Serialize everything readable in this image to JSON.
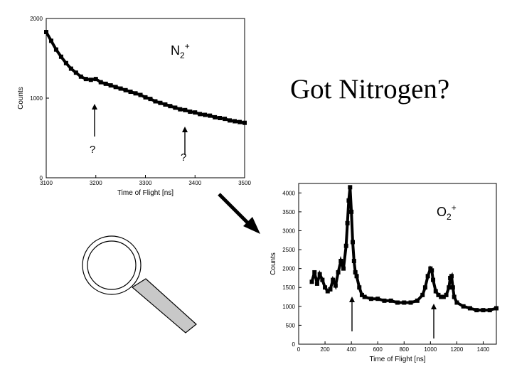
{
  "headline": "Got Nitrogen?",
  "labels": {
    "n2_base": "N",
    "n2_sub": "2",
    "n2_sup": "+",
    "o2_base": "O",
    "o2_sub": "2",
    "o2_sup": "+",
    "question_mark": "?"
  },
  "chart_data": [
    {
      "type": "scatter",
      "title": "",
      "xlabel": "Time of Flight [ns]",
      "ylabel": "Counts",
      "xlim": [
        3100,
        3500
      ],
      "ylim": [
        0,
        2000
      ],
      "x_ticks": [
        "3100",
        "3200",
        "3300",
        "3400",
        "3500"
      ],
      "y_ticks": [
        "0",
        "1000",
        "2000"
      ],
      "grid": false,
      "series": [
        {
          "x": [
            3100,
            3110,
            3120,
            3130,
            3140,
            3150,
            3160,
            3170,
            3180,
            3190,
            3200,
            3210,
            3220,
            3230,
            3240,
            3250,
            3260,
            3270,
            3280,
            3290,
            3300,
            3310,
            3320,
            3330,
            3340,
            3350,
            3360,
            3370,
            3380,
            3390,
            3400,
            3410,
            3420,
            3430,
            3440,
            3450,
            3460,
            3470,
            3480,
            3490,
            3500
          ],
          "y": [
            1830,
            1720,
            1610,
            1520,
            1440,
            1370,
            1320,
            1270,
            1240,
            1230,
            1240,
            1200,
            1180,
            1160,
            1140,
            1120,
            1100,
            1080,
            1060,
            1040,
            1010,
            990,
            960,
            940,
            920,
            900,
            880,
            860,
            850,
            830,
            820,
            800,
            790,
            780,
            760,
            750,
            740,
            720,
            710,
            700,
            690
          ]
        }
      ],
      "annotation_x": [
        3200,
        3380
      ]
    },
    {
      "type": "scatter",
      "title": "",
      "xlabel": "Time of Flight [ns]",
      "ylabel": "Counts",
      "xlim": [
        0,
        1500
      ],
      "ylim": [
        0,
        4250
      ],
      "x_ticks": [
        "0",
        "200",
        "400",
        "600",
        "800",
        "1000",
        "1200",
        "1400"
      ],
      "y_ticks": [
        "0",
        "500",
        "1000",
        "1500",
        "2000",
        "2500",
        "3000",
        "3500",
        "4000"
      ],
      "grid": false,
      "series": [
        {
          "x": [
            100,
            120,
            140,
            160,
            180,
            200,
            220,
            240,
            260,
            280,
            300,
            320,
            340,
            360,
            370,
            380,
            390,
            400,
            410,
            420,
            430,
            440,
            460,
            480,
            500,
            550,
            600,
            650,
            700,
            750,
            800,
            850,
            900,
            940,
            960,
            980,
            1000,
            1010,
            1020,
            1040,
            1060,
            1080,
            1100,
            1120,
            1140,
            1150,
            1160,
            1170,
            1180,
            1200,
            1250,
            1300,
            1350,
            1400,
            1450,
            1500
          ],
          "y": [
            1650,
            1900,
            1600,
            1850,
            1700,
            1500,
            1400,
            1450,
            1700,
            1550,
            1900,
            2200,
            2000,
            2600,
            3200,
            3800,
            4150,
            3500,
            2700,
            2200,
            1900,
            1800,
            1500,
            1300,
            1250,
            1200,
            1200,
            1150,
            1150,
            1100,
            1100,
            1100,
            1150,
            1300,
            1500,
            1800,
            2000,
            1950,
            1700,
            1400,
            1300,
            1250,
            1250,
            1300,
            1500,
            1750,
            1800,
            1500,
            1250,
            1100,
            1000,
            950,
            900,
            900,
            900,
            950
          ]
        }
      ],
      "annotation_x": [
        400,
        1000
      ]
    }
  ]
}
